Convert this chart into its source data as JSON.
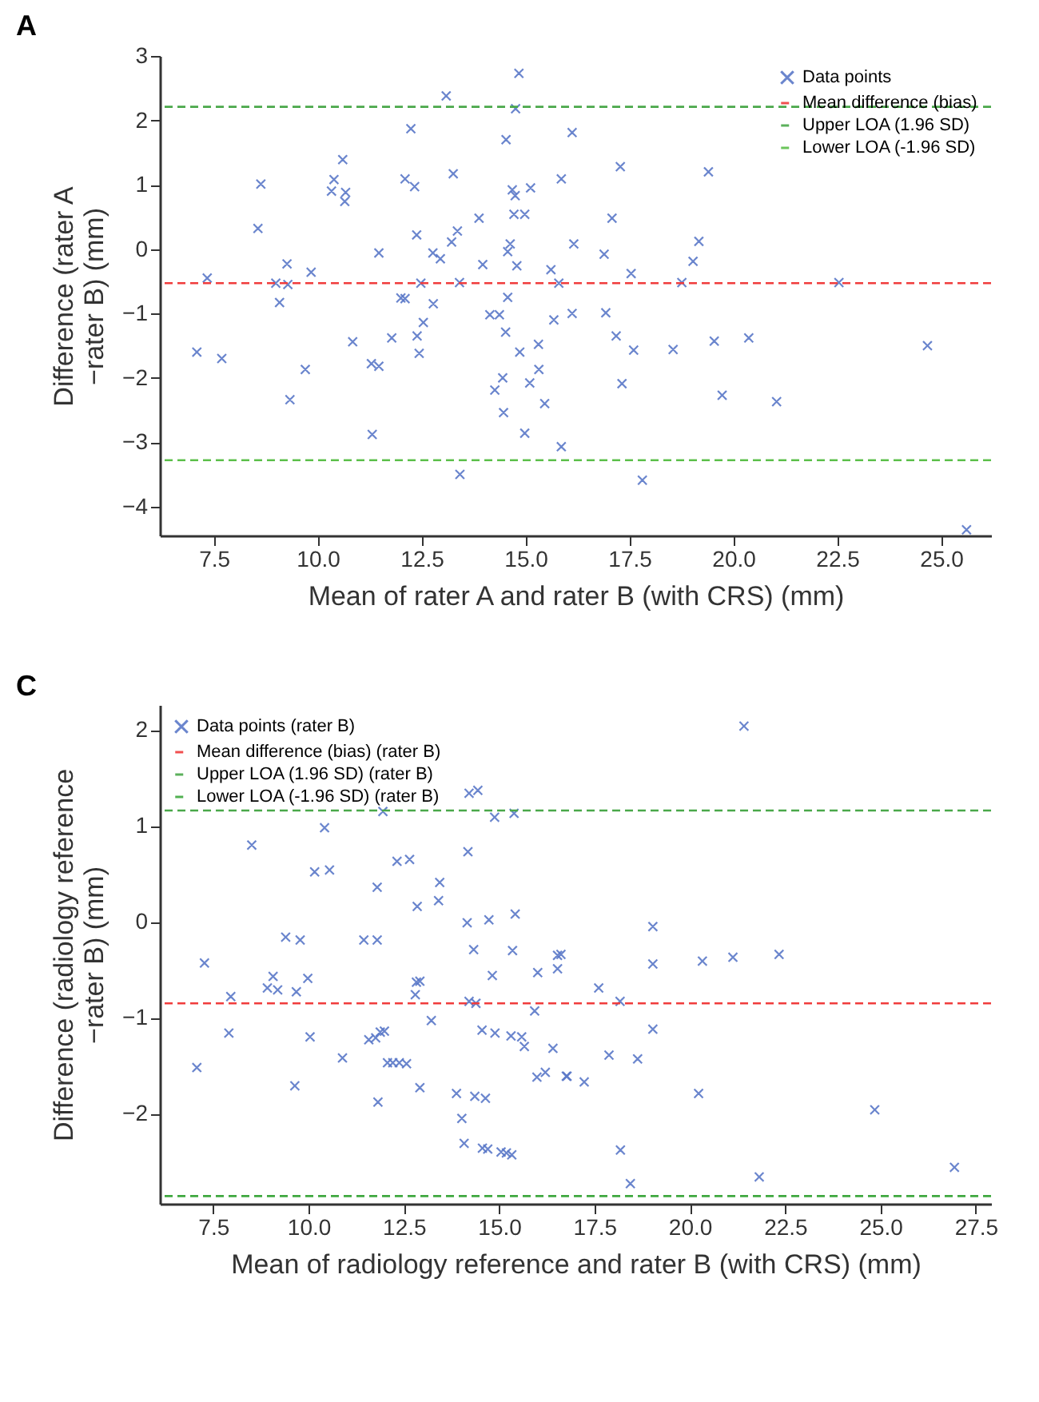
{
  "chart_data": [
    {
      "type": "scatter",
      "title": "A",
      "xlabel": "Mean of rater A and rater B (with CRS) (mm)",
      "ylabel": "Difference (rater A −rater B) (mm)",
      "xlim": [
        6.2,
        26.2
      ],
      "ylim": [
        -4.45,
        3.0
      ],
      "xticks": [
        7.5,
        {
          "value": 10,
          "label": "10.0"
        },
        12.5,
        {
          "value": 15,
          "label": "15.0"
        },
        17.5,
        {
          "value": 20,
          "label": "20.0"
        },
        22.5,
        {
          "value": 25,
          "label": "25.0"
        }
      ],
      "yticks": [
        -4,
        -3,
        -2,
        -1,
        0,
        1,
        2,
        3
      ],
      "grid": false,
      "legend": "top right",
      "marker": "cross",
      "series": [
        {
          "name": "Data points",
          "color": "#5a78c8",
          "x": [
            7.09,
            7.34,
            7.69,
            8.56,
            8.63,
            8.99,
            9.26,
            9.28,
            9.08,
            9.33,
            9.7,
            9.84,
            10.33,
            10.39,
            10.6,
            10.67,
            10.65,
            10.84,
            11.29,
            11.47,
            11.31,
            11.47,
            11.78,
            12.0,
            12.1,
            12.24,
            12.1,
            12.33,
            12.38,
            12.48,
            12.39,
            12.44,
            12.54,
            12.77,
            12.95,
            12.78,
            13.09,
            13.26,
            13.22,
            13.36,
            13.41,
            13.42,
            13.88,
            13.97,
            14.14,
            14.37,
            14.52,
            14.26,
            14.45,
            14.47,
            14.53,
            14.57,
            14.63,
            14.57,
            14.68,
            14.75,
            14.72,
            14.98,
            14.79,
            14.84,
            14.76,
            15.12,
            14.86,
            15.1,
            15.31,
            15.32,
            15.46,
            14.98,
            15.61,
            15.68,
            15.8,
            15.86,
            15.86,
            16.12,
            17.28,
            19.4,
            17.08,
            16.16,
            16.89,
            19.17,
            19.03,
            17.54,
            18.76,
            22.54,
            16.12,
            16.93,
            17.18,
            17.6,
            18.55,
            19.54,
            20.37,
            24.67,
            17.32,
            19.73,
            21.04,
            17.81,
            25.61
          ],
          "values": [
            -1.6,
            -0.45,
            -1.7,
            0.32,
            1.01,
            -0.53,
            -0.23,
            -0.55,
            -0.83,
            -2.34,
            -1.87,
            -0.36,
            0.9,
            1.08,
            1.39,
            0.88,
            0.74,
            -1.44,
            -1.78,
            -1.82,
            -2.88,
            -0.06,
            -1.38,
            -0.76,
            -0.77,
            1.87,
            1.09,
            0.97,
            0.22,
            -0.53,
            -1.35,
            -1.62,
            -1.14,
            -0.06,
            -0.15,
            -0.85,
            2.38,
            1.17,
            0.11,
            0.28,
            -0.52,
            -3.5,
            0.48,
            -0.24,
            -1.02,
            -1.02,
            -1.29,
            -2.19,
            -2.0,
            -2.54,
            1.7,
            -0.75,
            0.08,
            -0.04,
            0.92,
            0.83,
            0.54,
            0.54,
            -0.26,
            2.73,
            2.18,
            0.95,
            -1.6,
            -2.08,
            -1.48,
            -1.87,
            -2.4,
            -2.86,
            -0.32,
            -1.1,
            -0.53,
            1.09,
            -3.07,
            1.81,
            1.28,
            1.2,
            0.48,
            0.08,
            -0.08,
            0.12,
            -0.19,
            -0.38,
            -0.52,
            -0.52,
            -1.0,
            -0.99,
            -1.35,
            -1.57,
            -1.56,
            -1.43,
            -1.38,
            -1.5,
            -2.09,
            -2.27,
            -2.37,
            -3.59,
            -4.36
          ]
        }
      ],
      "ref_lines": [
        {
          "axis": "y",
          "value": -0.53,
          "label": "Mean difference (bias)",
          "color": "#f03c3c",
          "line_style": "dashed"
        },
        {
          "axis": "y",
          "value": 2.21,
          "label": "Upper LOA (1.96 SD)",
          "color": "#4aa84a",
          "line_style": "dashed"
        },
        {
          "axis": "y",
          "value": -3.28,
          "label": "Lower LOA (-1.96 SD)",
          "color": "#5cbf4a",
          "line_style": "dashed"
        }
      ]
    },
    {
      "type": "scatter",
      "title": "C",
      "xlabel": "Mean of radiology reference and rater B (with CRS) (mm)",
      "ylabel": "Difference (radiology reference −rater B) (mm)",
      "xlim": [
        6.1,
        27.9
      ],
      "ylim": [
        -2.94,
        2.26
      ],
      "xticks": [
        7.5,
        {
          "value": 10,
          "label": "10.0"
        },
        12.5,
        {
          "value": 15,
          "label": "15.0"
        },
        17.5,
        {
          "value": 20,
          "label": "20.0"
        },
        22.5,
        {
          "value": 25,
          "label": "25.0"
        },
        27.5
      ],
      "yticks": [
        -2,
        -1,
        0,
        1,
        2
      ],
      "grid": false,
      "legend": "top left",
      "marker": "cross",
      "series": [
        {
          "name": "Data points (rater B)",
          "color": "#5a78c8",
          "x": [
            7.07,
            7.27,
            7.91,
            7.96,
            8.51,
            8.92,
            9.07,
            9.19,
            9.4,
            9.68,
            9.64,
            9.78,
            9.98,
            10.04,
            10.16,
            10.42,
            10.55,
            10.89,
            11.45,
            11.58,
            11.8,
            11.8,
            11.82,
            11.76,
            11.88,
            11.95,
            11.99,
            12.07,
            12.21,
            12.38,
            12.57,
            12.32,
            12.65,
            12.83,
            12.8,
            12.92,
            12.92,
            12.85,
            13.22,
            13.44,
            13.41,
            13.88,
            14.02,
            14.08,
            14.18,
            14.16,
            14.33,
            14.21,
            14.44,
            14.21,
            14.39,
            14.36,
            14.64,
            14.55,
            14.89,
            14.73,
            14.82,
            14.56,
            14.7,
            15.05,
            15.19,
            15.33,
            14.88,
            15.39,
            15.42,
            15.35,
            15.31,
            15.59,
            15.66,
            15.93,
            16.01,
            15.99,
            16.21,
            16.41,
            16.53,
            16.53,
            21.42,
            19.03,
            16.62,
            19.03,
            20.33,
            21.13,
            22.34,
            17.61,
            18.17,
            19.03,
            17.88,
            18.63,
            16.76,
            16.78,
            17.23,
            20.23,
            24.85,
            18.18,
            18.44,
            21.82,
            26.94
          ],
          "values": [
            -1.52,
            -0.43,
            -1.16,
            -0.78,
            0.8,
            -0.69,
            -0.57,
            -0.71,
            -0.16,
            -0.73,
            -1.71,
            -0.19,
            -0.59,
            -1.2,
            0.52,
            0.98,
            0.54,
            -1.42,
            -0.19,
            -1.23,
            -0.19,
            0.36,
            -1.88,
            -1.21,
            -1.15,
            1.15,
            -1.14,
            -1.47,
            -1.47,
            -1.47,
            -1.48,
            0.63,
            0.65,
            -0.63,
            -0.76,
            -0.62,
            -1.73,
            0.16,
            -1.03,
            0.41,
            0.22,
            -1.79,
            -2.05,
            -2.31,
            0.73,
            -0.01,
            -0.29,
            1.34,
            1.37,
            -0.83,
            -0.85,
            -1.82,
            -1.84,
            -1.13,
            -1.16,
            0.02,
            -0.56,
            -2.36,
            -2.37,
            -2.4,
            -2.41,
            -2.43,
            1.09,
            1.13,
            0.08,
            -0.3,
            -1.19,
            -1.2,
            -1.3,
            -0.93,
            -0.53,
            -1.62,
            -1.57,
            -1.32,
            -0.49,
            -0.35,
            2.04,
            -0.05,
            -0.34,
            -0.44,
            -0.41,
            -0.37,
            -0.34,
            -0.69,
            -0.83,
            -1.12,
            -1.39,
            -1.43,
            -1.61,
            -1.61,
            -1.67,
            -1.79,
            -1.96,
            -2.38,
            -2.73,
            -2.66,
            -2.56
          ]
        }
      ],
      "ref_lines": [
        {
          "axis": "y",
          "value": -0.85,
          "label": "Mean difference (bias) (rater B)",
          "color": "#f03c3c",
          "line_style": "dashed"
        },
        {
          "axis": "y",
          "value": 1.16,
          "label": "Upper LOA (1.96 SD) (rater B)",
          "color": "#4aa84a",
          "line_style": "dashed"
        },
        {
          "axis": "y",
          "value": -2.86,
          "label": "Lower LOA (-1.96 SD) (rater B)",
          "color": "#3fa83f",
          "line_style": "dashed"
        }
      ]
    }
  ]
}
